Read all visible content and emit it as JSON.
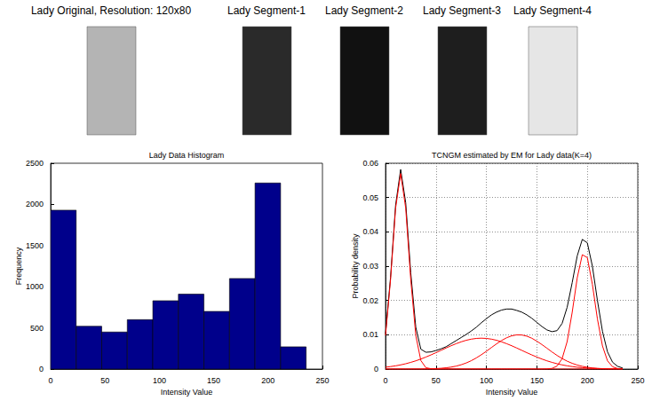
{
  "images": [
    "Lady Original, Resolution: 120x80",
    "Lady Segment-1",
    "Lady Segment-2",
    "Lady Segment-3",
    "Lady Segment-4"
  ],
  "chart_data": [
    {
      "type": "histogram",
      "title": "Lady Data Histogram",
      "x_label": "Intensity Value",
      "y_label": "Frequency",
      "bins": [
        0,
        23.5,
        47,
        70.5,
        94,
        117.5,
        141,
        164.5,
        188,
        211.5,
        235
      ],
      "values": [
        1930,
        520,
        450,
        600,
        830,
        910,
        700,
        1100,
        2260,
        270
      ],
      "color": "#00008b",
      "xlim": [
        0,
        250
      ],
      "ylim": [
        0,
        2500
      ],
      "xticks": [
        0,
        50,
        100,
        150,
        200,
        250
      ],
      "yticks": [
        0,
        500,
        1000,
        1500,
        2000,
        2500
      ],
      "grid": false
    },
    {
      "type": "line",
      "title": "TCNGM estimated by EM for Lady data(K=4)",
      "x_label": "Intensity Value",
      "y_label": "Probability density",
      "x": [
        0,
        5,
        10,
        15,
        20,
        25,
        30,
        35,
        40,
        45,
        50,
        55,
        60,
        65,
        70,
        75,
        80,
        85,
        90,
        95,
        100,
        105,
        110,
        115,
        120,
        125,
        130,
        135,
        140,
        145,
        150,
        155,
        160,
        165,
        170,
        175,
        180,
        185,
        190,
        195,
        200,
        205,
        210,
        215,
        220,
        225,
        230,
        235
      ],
      "series": [
        {
          "color": "#000000",
          "values": [
            0.0103,
            0.0268,
            0.0478,
            0.0582,
            0.0485,
            0.0281,
            0.0122,
            0.0058,
            0.0049,
            0.005,
            0.0054,
            0.0059,
            0.0065,
            0.0074,
            0.0083,
            0.0092,
            0.0101,
            0.0111,
            0.0122,
            0.0135,
            0.0147,
            0.0158,
            0.0166,
            0.0172,
            0.0175,
            0.0175,
            0.0171,
            0.0166,
            0.0158,
            0.0148,
            0.0136,
            0.0124,
            0.0114,
            0.0109,
            0.0112,
            0.0133,
            0.018,
            0.0252,
            0.033,
            0.0378,
            0.0368,
            0.03,
            0.02,
            0.011,
            0.005,
            0.002,
            0.0008,
            0.0003
          ]
        },
        {
          "color": "#ff0000",
          "values": [
            0.0098,
            0.0261,
            0.0469,
            0.057,
            0.0469,
            0.0261,
            0.0098,
            0.0025,
            0.0004,
            0.0001,
            0,
            0,
            0,
            0,
            0,
            0,
            0,
            0,
            0,
            0,
            0,
            0,
            0,
            0,
            0,
            0,
            0,
            0,
            0,
            0,
            0,
            0,
            0,
            0,
            0,
            0,
            0,
            0,
            0,
            0,
            0,
            0,
            0,
            0,
            0,
            0,
            0,
            0
          ]
        },
        {
          "color": "#ff0000",
          "values": [
            0.00054,
            0.00072,
            0.00094,
            0.00122,
            0.00155,
            0.00195,
            0.0024,
            0.00292,
            0.0035,
            0.00412,
            0.00478,
            0.00546,
            0.00614,
            0.0068,
            0.0074,
            0.00794,
            0.00839,
            0.00872,
            0.00893,
            0.009,
            0.00893,
            0.00872,
            0.00839,
            0.00794,
            0.0074,
            0.0068,
            0.00614,
            0.00546,
            0.00478,
            0.00412,
            0.0035,
            0.00292,
            0.0024,
            0.00195,
            0.00155,
            0.00122,
            0.00094,
            0.00072,
            0.00054,
            0.0004,
            0.00029,
            0.0002,
            0.00014,
            0.0001,
            7e-05,
            5e-05,
            3e-05,
            2e-05
          ]
        },
        {
          "color": "#ff0000",
          "values": [
            0,
            0,
            0,
            0,
            0,
            0,
            0,
            0,
            5e-05,
            8e-05,
            0.00014,
            0.00023,
            0.00037,
            0.00057,
            0.00086,
            0.00126,
            0.00178,
            0.00244,
            0.00325,
            0.00418,
            0.0052,
            0.00628,
            0.00734,
            0.00832,
            0.00912,
            0.00969,
            0.00997,
            0.00994,
            0.0096,
            0.00898,
            0.00813,
            0.00714,
            0.00607,
            0.00499,
            0.00398,
            0.00307,
            0.0023,
            0.00167,
            0.00117,
            0.0008,
            0.00052,
            0.00033,
            0.00021,
            0.00012,
            7e-05,
            4e-05,
            2e-05,
            1e-05
          ]
        },
        {
          "color": "#ff0000",
          "values": [
            0,
            0,
            0,
            0,
            0,
            0,
            0,
            0,
            0,
            0,
            0,
            0,
            0,
            0,
            0,
            0,
            0,
            0,
            0,
            0,
            0,
            0,
            0,
            0,
            0,
            0,
            0,
            0,
            0,
            0,
            0,
            0,
            4e-05,
            0.0002,
            0.00088,
            0.00302,
            0.00801,
            0.01654,
            0.02661,
            0.03333,
            0.0325,
            0.02469,
            0.01461,
            0.00673,
            0.0024,
            0.00067,
            0.00015,
            2e-05
          ]
        }
      ],
      "xlim": [
        0,
        250
      ],
      "ylim": [
        0,
        0.06
      ],
      "xticks": [
        0,
        50,
        100,
        150,
        200,
        250
      ],
      "yticks": [
        0,
        0.01,
        0.02,
        0.03,
        0.04,
        0.05,
        0.06
      ],
      "grid": true
    }
  ]
}
